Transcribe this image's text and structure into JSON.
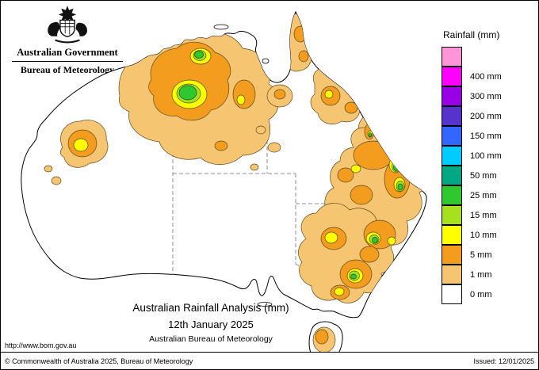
{
  "header": {
    "gov_label": "Australian Government",
    "bureau_label": "Bureau of Meteorology"
  },
  "legend": {
    "title": "Rainfall (mm)",
    "entries": [
      {
        "label": "",
        "color": "#FF94D9"
      },
      {
        "label": "400 mm",
        "color": "#FF00FF"
      },
      {
        "label": "300 mm",
        "color": "#9900E6"
      },
      {
        "label": "200 mm",
        "color": "#5533CC"
      },
      {
        "label": "150 mm",
        "color": "#3366FF"
      },
      {
        "label": "100 mm",
        "color": "#00CCFF"
      },
      {
        "label": "50 mm",
        "color": "#00A884"
      },
      {
        "label": "25 mm",
        "color": "#2FC82F"
      },
      {
        "label": "15 mm",
        "color": "#A8E020"
      },
      {
        "label": "10 mm",
        "color": "#FFFF00"
      },
      {
        "label": "5 mm",
        "color": "#F49C1D"
      },
      {
        "label": "1 mm",
        "color": "#F6C572"
      },
      {
        "label": "0 mm",
        "color": "#FFFFFF"
      }
    ]
  },
  "caption": {
    "title": "Australian Rainfall Analysis (mm)",
    "date": "12th January 2025",
    "org": "Australian Bureau of Meteorology"
  },
  "footer": {
    "url": "http://www.bom.gov.au",
    "copyright": "© Commonwealth of Australia 2025, Bureau of Meteorology",
    "issued": "Issued: 12/01/2025"
  }
}
